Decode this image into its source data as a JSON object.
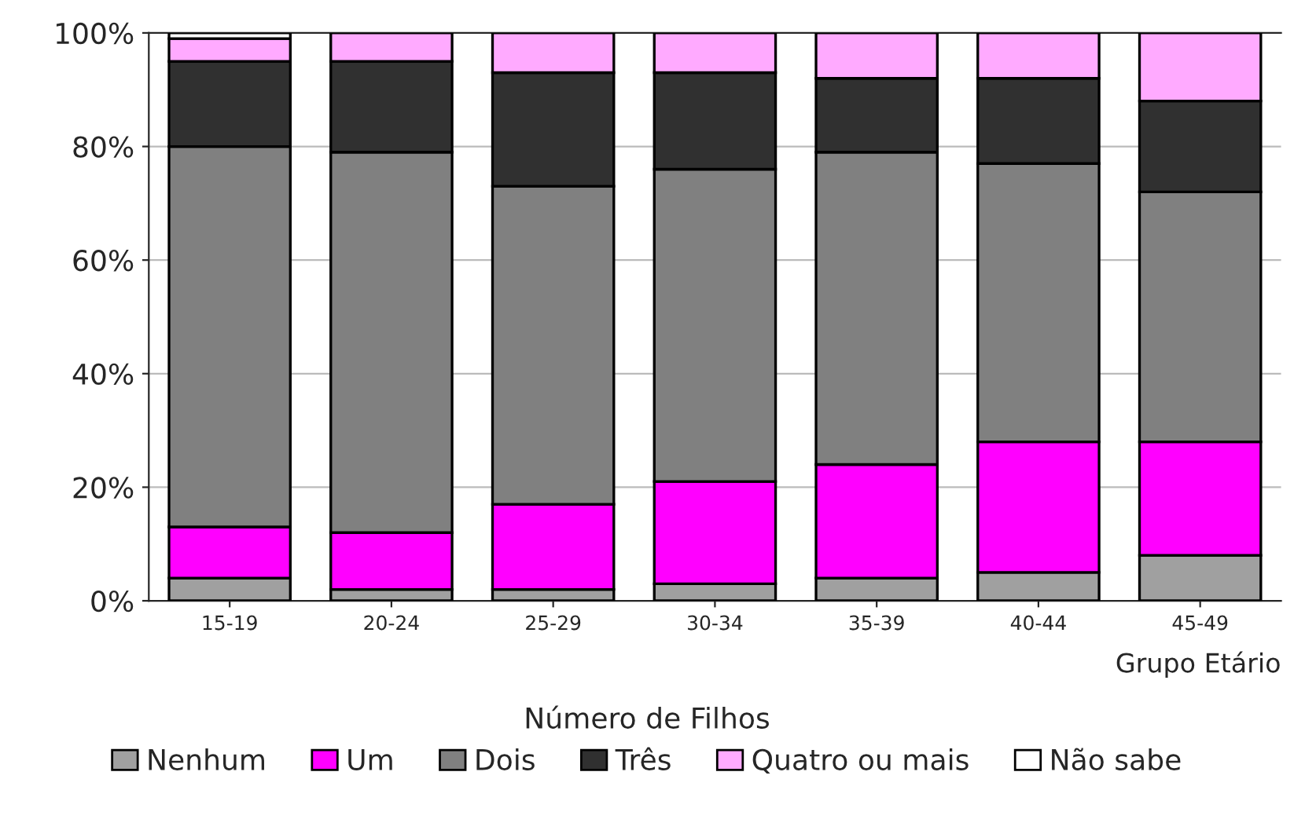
{
  "chart_data": {
    "type": "bar",
    "stacked": true,
    "categories": [
      "15-19",
      "20-24",
      "25-29",
      "30-34",
      "35-39",
      "40-44",
      "45-49"
    ],
    "series": [
      {
        "name": "Nenhum",
        "color": "#a0a0a0",
        "values": [
          4,
          2,
          2,
          3,
          4,
          5,
          8
        ]
      },
      {
        "name": "Um",
        "color": "#ff00ff",
        "values": [
          9,
          10,
          15,
          18,
          20,
          23,
          20
        ]
      },
      {
        "name": "Dois",
        "color": "#808080",
        "values": [
          67,
          67,
          56,
          55,
          55,
          49,
          44
        ]
      },
      {
        "name": "Três",
        "color": "#303030",
        "values": [
          15,
          16,
          20,
          17,
          13,
          15,
          16
        ]
      },
      {
        "name": "Quatro ou mais",
        "color": "#ffaaff",
        "values": [
          4,
          5,
          7,
          7,
          8,
          8,
          12
        ]
      },
      {
        "name": "Não sabe",
        "color": "#ffffff",
        "values": [
          1,
          0,
          0,
          0,
          0,
          0,
          0
        ]
      }
    ],
    "xlabel": "Grupo Etário",
    "legend_title": "Número de Filhos",
    "ylim": [
      0,
      100
    ],
    "yticks": [
      {
        "value": 0,
        "label": "0%"
      },
      {
        "value": 20,
        "label": "20%"
      },
      {
        "value": 40,
        "label": "40%"
      },
      {
        "value": 60,
        "label": "60%"
      },
      {
        "value": 80,
        "label": "80%"
      },
      {
        "value": 100,
        "label": "100%"
      }
    ],
    "grid": "y",
    "legend": "bottom"
  }
}
